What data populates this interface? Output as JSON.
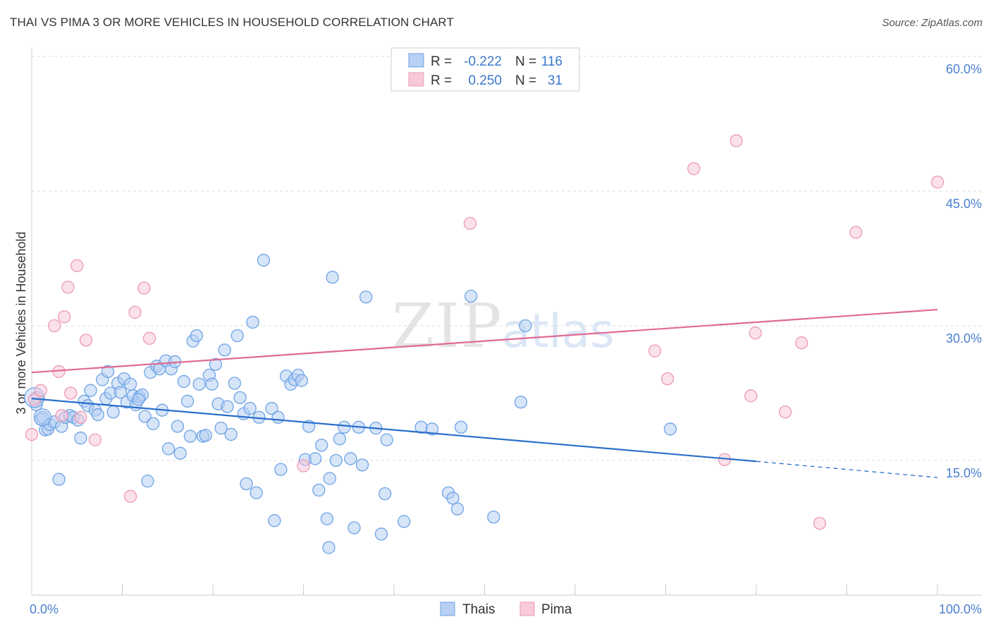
{
  "chart_data": {
    "type": "scatter",
    "title": "THAI VS PIMA 3 OR MORE VEHICLES IN HOUSEHOLD CORRELATION CHART",
    "source": "Source: ZipAtlas.com",
    "xlabel": "",
    "ylabel": "3 or more Vehicles in Household",
    "xlim": [
      0,
      100
    ],
    "ylim": [
      0,
      60
    ],
    "x_tick_labels": [
      "0.0%",
      "100.0%"
    ],
    "y_ticks": [
      {
        "value": 15,
        "label": "15.0%"
      },
      {
        "value": 30,
        "label": "30.0%"
      },
      {
        "value": 45,
        "label": "45.0%"
      },
      {
        "value": 60,
        "label": "60.0%"
      }
    ],
    "grid": true,
    "watermark": "ZIPatlas",
    "legend": {
      "position": "top-center",
      "rows": [
        {
          "r_label": "R =",
          "r_value": "-0.222",
          "n_label": "N =",
          "n_value": "116"
        },
        {
          "r_label": "R =",
          "r_value": "0.250",
          "n_label": "N =",
          "n_value": "31"
        }
      ]
    },
    "series": [
      {
        "name": "Thais",
        "color": "#6ea3e6",
        "fill": "#b7d0f3",
        "line_color": "#2a6fcc",
        "trend": {
          "x0": 0,
          "y0": 21.9,
          "x1": 80,
          "y1": 14.9,
          "dashed_to_x": 100,
          "dashed_to_y": 13.1
        },
        "points": [
          [
            0.5,
            21.2
          ],
          [
            0.6,
            22.0
          ],
          [
            1.0,
            19.6
          ],
          [
            1.2,
            19.8
          ],
          [
            1.5,
            18.4
          ],
          [
            1.8,
            18.5
          ],
          [
            2.0,
            19.0
          ],
          [
            2.5,
            19.3
          ],
          [
            3.0,
            12.9
          ],
          [
            3.3,
            18.8
          ],
          [
            3.7,
            19.8
          ],
          [
            4.2,
            20.0
          ],
          [
            4.6,
            19.8
          ],
          [
            5.1,
            19.5
          ],
          [
            5.4,
            17.5
          ],
          [
            5.8,
            21.6
          ],
          [
            6.2,
            21.1
          ],
          [
            6.5,
            22.8
          ],
          [
            7.0,
            20.6
          ],
          [
            7.3,
            20.1
          ],
          [
            7.8,
            24.0
          ],
          [
            8.2,
            21.9
          ],
          [
            8.4,
            24.9
          ],
          [
            8.7,
            22.5
          ],
          [
            9.0,
            20.4
          ],
          [
            9.5,
            23.6
          ],
          [
            9.8,
            22.6
          ],
          [
            10.2,
            24.1
          ],
          [
            10.5,
            21.5
          ],
          [
            10.9,
            23.5
          ],
          [
            11.2,
            22.2
          ],
          [
            11.5,
            21.2
          ],
          [
            11.9,
            22.1
          ],
          [
            12.2,
            22.3
          ],
          [
            12.5,
            19.9
          ],
          [
            12.8,
            12.7
          ],
          [
            13.1,
            24.8
          ],
          [
            13.4,
            19.1
          ],
          [
            13.8,
            25.5
          ],
          [
            14.1,
            25.2
          ],
          [
            14.4,
            20.6
          ],
          [
            14.8,
            26.1
          ],
          [
            15.1,
            16.3
          ],
          [
            15.4,
            25.2
          ],
          [
            15.8,
            26.0
          ],
          [
            16.1,
            18.8
          ],
          [
            16.4,
            15.8
          ],
          [
            16.8,
            23.8
          ],
          [
            17.2,
            21.6
          ],
          [
            17.5,
            17.7
          ],
          [
            17.8,
            28.3
          ],
          [
            18.2,
            28.9
          ],
          [
            18.5,
            23.5
          ],
          [
            18.9,
            17.7
          ],
          [
            19.2,
            17.8
          ],
          [
            19.6,
            24.5
          ],
          [
            19.9,
            23.5
          ],
          [
            20.3,
            25.7
          ],
          [
            20.6,
            21.3
          ],
          [
            20.9,
            18.6
          ],
          [
            21.3,
            27.3
          ],
          [
            21.6,
            21.0
          ],
          [
            22.0,
            17.9
          ],
          [
            22.4,
            23.6
          ],
          [
            22.7,
            28.9
          ],
          [
            23.0,
            22.0
          ],
          [
            23.4,
            20.2
          ],
          [
            23.7,
            12.4
          ],
          [
            24.1,
            20.8
          ],
          [
            24.4,
            30.4
          ],
          [
            24.8,
            11.4
          ],
          [
            25.1,
            19.8
          ],
          [
            25.6,
            37.3
          ],
          [
            26.5,
            20.8
          ],
          [
            26.8,
            8.3
          ],
          [
            27.2,
            19.8
          ],
          [
            27.5,
            14.0
          ],
          [
            28.1,
            24.4
          ],
          [
            28.6,
            23.5
          ],
          [
            29.0,
            24.0
          ],
          [
            29.4,
            24.5
          ],
          [
            29.8,
            23.9
          ],
          [
            30.2,
            15.1
          ],
          [
            30.6,
            18.8
          ],
          [
            31.3,
            15.2
          ],
          [
            31.7,
            11.7
          ],
          [
            32.0,
            16.7
          ],
          [
            32.6,
            8.5
          ],
          [
            32.9,
            13.0
          ],
          [
            33.2,
            35.4
          ],
          [
            33.6,
            15.0
          ],
          [
            34.0,
            17.4
          ],
          [
            34.5,
            18.7
          ],
          [
            35.2,
            15.2
          ],
          [
            35.6,
            7.5
          ],
          [
            36.1,
            18.7
          ],
          [
            36.5,
            14.5
          ],
          [
            36.9,
            33.2
          ],
          [
            38.0,
            18.6
          ],
          [
            38.6,
            6.8
          ],
          [
            39.0,
            11.3
          ],
          [
            39.2,
            17.3
          ],
          [
            41.1,
            8.2
          ],
          [
            43.0,
            18.7
          ],
          [
            44.2,
            18.5
          ],
          [
            46.0,
            11.4
          ],
          [
            46.5,
            10.8
          ],
          [
            47.0,
            9.6
          ],
          [
            47.4,
            18.7
          ],
          [
            48.5,
            33.3
          ],
          [
            51.0,
            8.7
          ],
          [
            54.0,
            21.5
          ],
          [
            54.5,
            30.0
          ],
          [
            70.5,
            18.5
          ],
          [
            32.8,
            5.3
          ],
          [
            11.8,
            21.8
          ]
        ]
      },
      {
        "name": "Pima",
        "color": "#ec9ab6",
        "fill": "#f8c9d8",
        "line_color": "#e06a95",
        "trend": {
          "x0": 0,
          "y0": 24.8,
          "x1": 100,
          "y1": 31.8
        },
        "points": [
          [
            0.0,
            17.9
          ],
          [
            0.3,
            21.8
          ],
          [
            1.0,
            22.8
          ],
          [
            2.5,
            30.0
          ],
          [
            3.0,
            24.9
          ],
          [
            3.3,
            20.0
          ],
          [
            3.6,
            31.0
          ],
          [
            4.0,
            34.3
          ],
          [
            4.3,
            22.5
          ],
          [
            5.0,
            36.7
          ],
          [
            5.4,
            19.8
          ],
          [
            6.0,
            28.4
          ],
          [
            7.0,
            17.3
          ],
          [
            10.9,
            11.0
          ],
          [
            11.4,
            31.5
          ],
          [
            12.4,
            34.2
          ],
          [
            13.0,
            28.6
          ],
          [
            30.0,
            14.4
          ],
          [
            48.4,
            41.4
          ],
          [
            68.8,
            27.2
          ],
          [
            70.2,
            24.1
          ],
          [
            73.1,
            47.5
          ],
          [
            76.5,
            15.1
          ],
          [
            77.8,
            50.6
          ],
          [
            79.4,
            22.2
          ],
          [
            79.9,
            29.2
          ],
          [
            83.2,
            20.4
          ],
          [
            85.0,
            28.1
          ],
          [
            87.0,
            8.0
          ],
          [
            91.0,
            40.4
          ],
          [
            100.0,
            46.0
          ]
        ]
      }
    ]
  }
}
